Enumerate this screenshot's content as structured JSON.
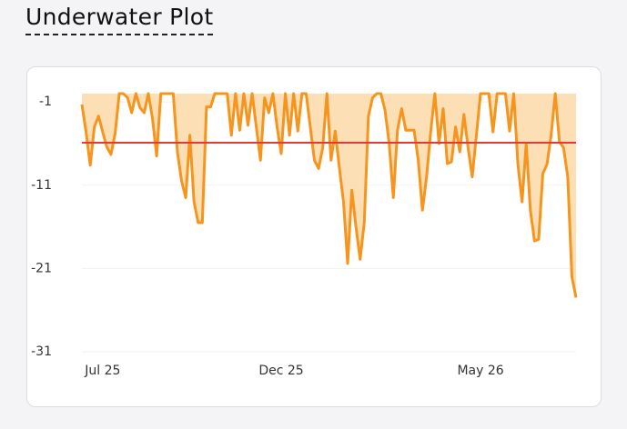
{
  "title": "Underwater Plot",
  "chart_data": {
    "type": "area",
    "values": [
      -1.3,
      -4.6,
      -8.6,
      -4,
      -2.7,
      -4.6,
      -6.4,
      -7.3,
      -4.8,
      0,
      0,
      -0.5,
      -2.3,
      0,
      -1.7,
      -2.3,
      0,
      -3,
      -7.5,
      0,
      0,
      0,
      0,
      -7,
      -10.5,
      -12.5,
      -5,
      -13,
      -15.5,
      -15.5,
      -1.6,
      -1.6,
      0,
      0,
      0,
      0,
      -5,
      0,
      -4.4,
      0,
      -3.8,
      0,
      -4,
      -8,
      -0.5,
      -2.3,
      0,
      -4,
      -7.2,
      0,
      -5,
      0,
      -4.5,
      0,
      0,
      -4,
      -8,
      -9,
      -6.5,
      0,
      -8,
      -4.5,
      -8.9,
      -13,
      -20.4,
      -11.6,
      -16,
      -19.9,
      -15.5,
      -2.7,
      -0.5,
      0,
      0,
      -2,
      -6,
      -12.5,
      -4.4,
      -1.8,
      -4.4,
      -4.4,
      -4.4,
      -8,
      -14,
      -10,
      -4.6,
      0,
      -6,
      -1.8,
      -8.4,
      -8.2,
      -4,
      -7,
      -2.5,
      -6.5,
      -10,
      -5,
      0,
      0,
      0,
      -4.6,
      0,
      0,
      0,
      -4.5,
      0,
      -8.5,
      -13,
      -6,
      -14,
      -17.7,
      -17.5,
      -9.6,
      -8.5,
      -5,
      0,
      -5.8,
      -6.5,
      -10,
      -22,
      -24.5
    ],
    "color": "#f7941d",
    "fill": "#fdd9a8",
    "mean": -5.9,
    "mean_color": "#e53935",
    "xlim": [
      0,
      119
    ],
    "xticks": [
      {
        "value": 5,
        "label": "Jul 25"
      },
      {
        "value": 48,
        "label": "Dec 25"
      },
      {
        "value": 96,
        "label": "May 26"
      }
    ],
    "ylim": [
      -31,
      0
    ],
    "yticks": [
      -1,
      -11,
      -21,
      -31
    ],
    "grid": true
  }
}
